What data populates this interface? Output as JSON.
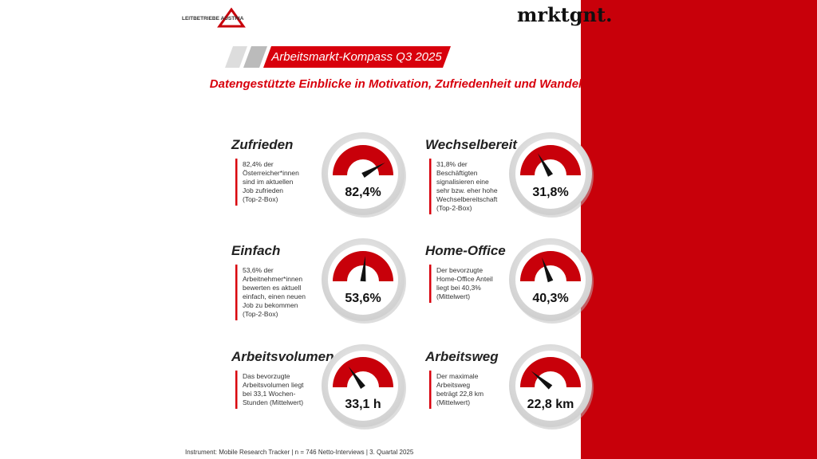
{
  "header": {
    "logo_left": "LEITBETRIEBE AUSTRIA",
    "logo_right": "mrktgnt.",
    "title": "Arbeitsmarkt-Kompass Q3 2025",
    "subtitle": "Datengestützte Einblicke in Motivation, Zufriedenheit und Wandel"
  },
  "cards": [
    {
      "title": "Zufrieden",
      "description": [
        "82,4% der",
        "Österreicher*innen",
        "sind im aktuellen",
        "Job zufrieden",
        "(Top-2-Box)"
      ],
      "value": "82,4%"
    },
    {
      "title": "Wechselbereit",
      "description": [
        "31,8% der",
        "Beschäftigten",
        "signalisieren eine",
        "sehr bzw. eher hohe",
        "Wechselbereitschaft",
        "(Top-2-Box)"
      ],
      "value": "31,8%"
    },
    {
      "title": "Einfach",
      "description": [
        "53,6% der",
        "Arbeitnehmer*innen",
        "bewerten es aktuell",
        "einfach, einen neuen",
        "Job zu bekommen",
        "(Top-2-Box)"
      ],
      "value": "53,6%"
    },
    {
      "title": "Home-Office",
      "description": [
        "Der bevorzugte",
        "Home-Office Anteil",
        "liegt bei 40,3%",
        "(Mittelwert)"
      ],
      "value": "40,3%"
    },
    {
      "title": "Arbeitsvolumen",
      "description": [
        "Das bevorzugte",
        "Arbeitsvolumen liegt",
        "bei 33,1 Wochen-",
        "Stunden (Mittelwert)"
      ],
      "value": "33,1 h"
    },
    {
      "title": "Arbeitsweg",
      "description": [
        "Der maximale",
        "Arbeitsweg",
        "beträgt 22,8 km",
        "(Mittelwert)"
      ],
      "value": "22,8 km"
    }
  ],
  "footer": "Instrument: Mobile Research Tracker | n = 746 Netto-Interviews | 3. Quartal 2025"
}
